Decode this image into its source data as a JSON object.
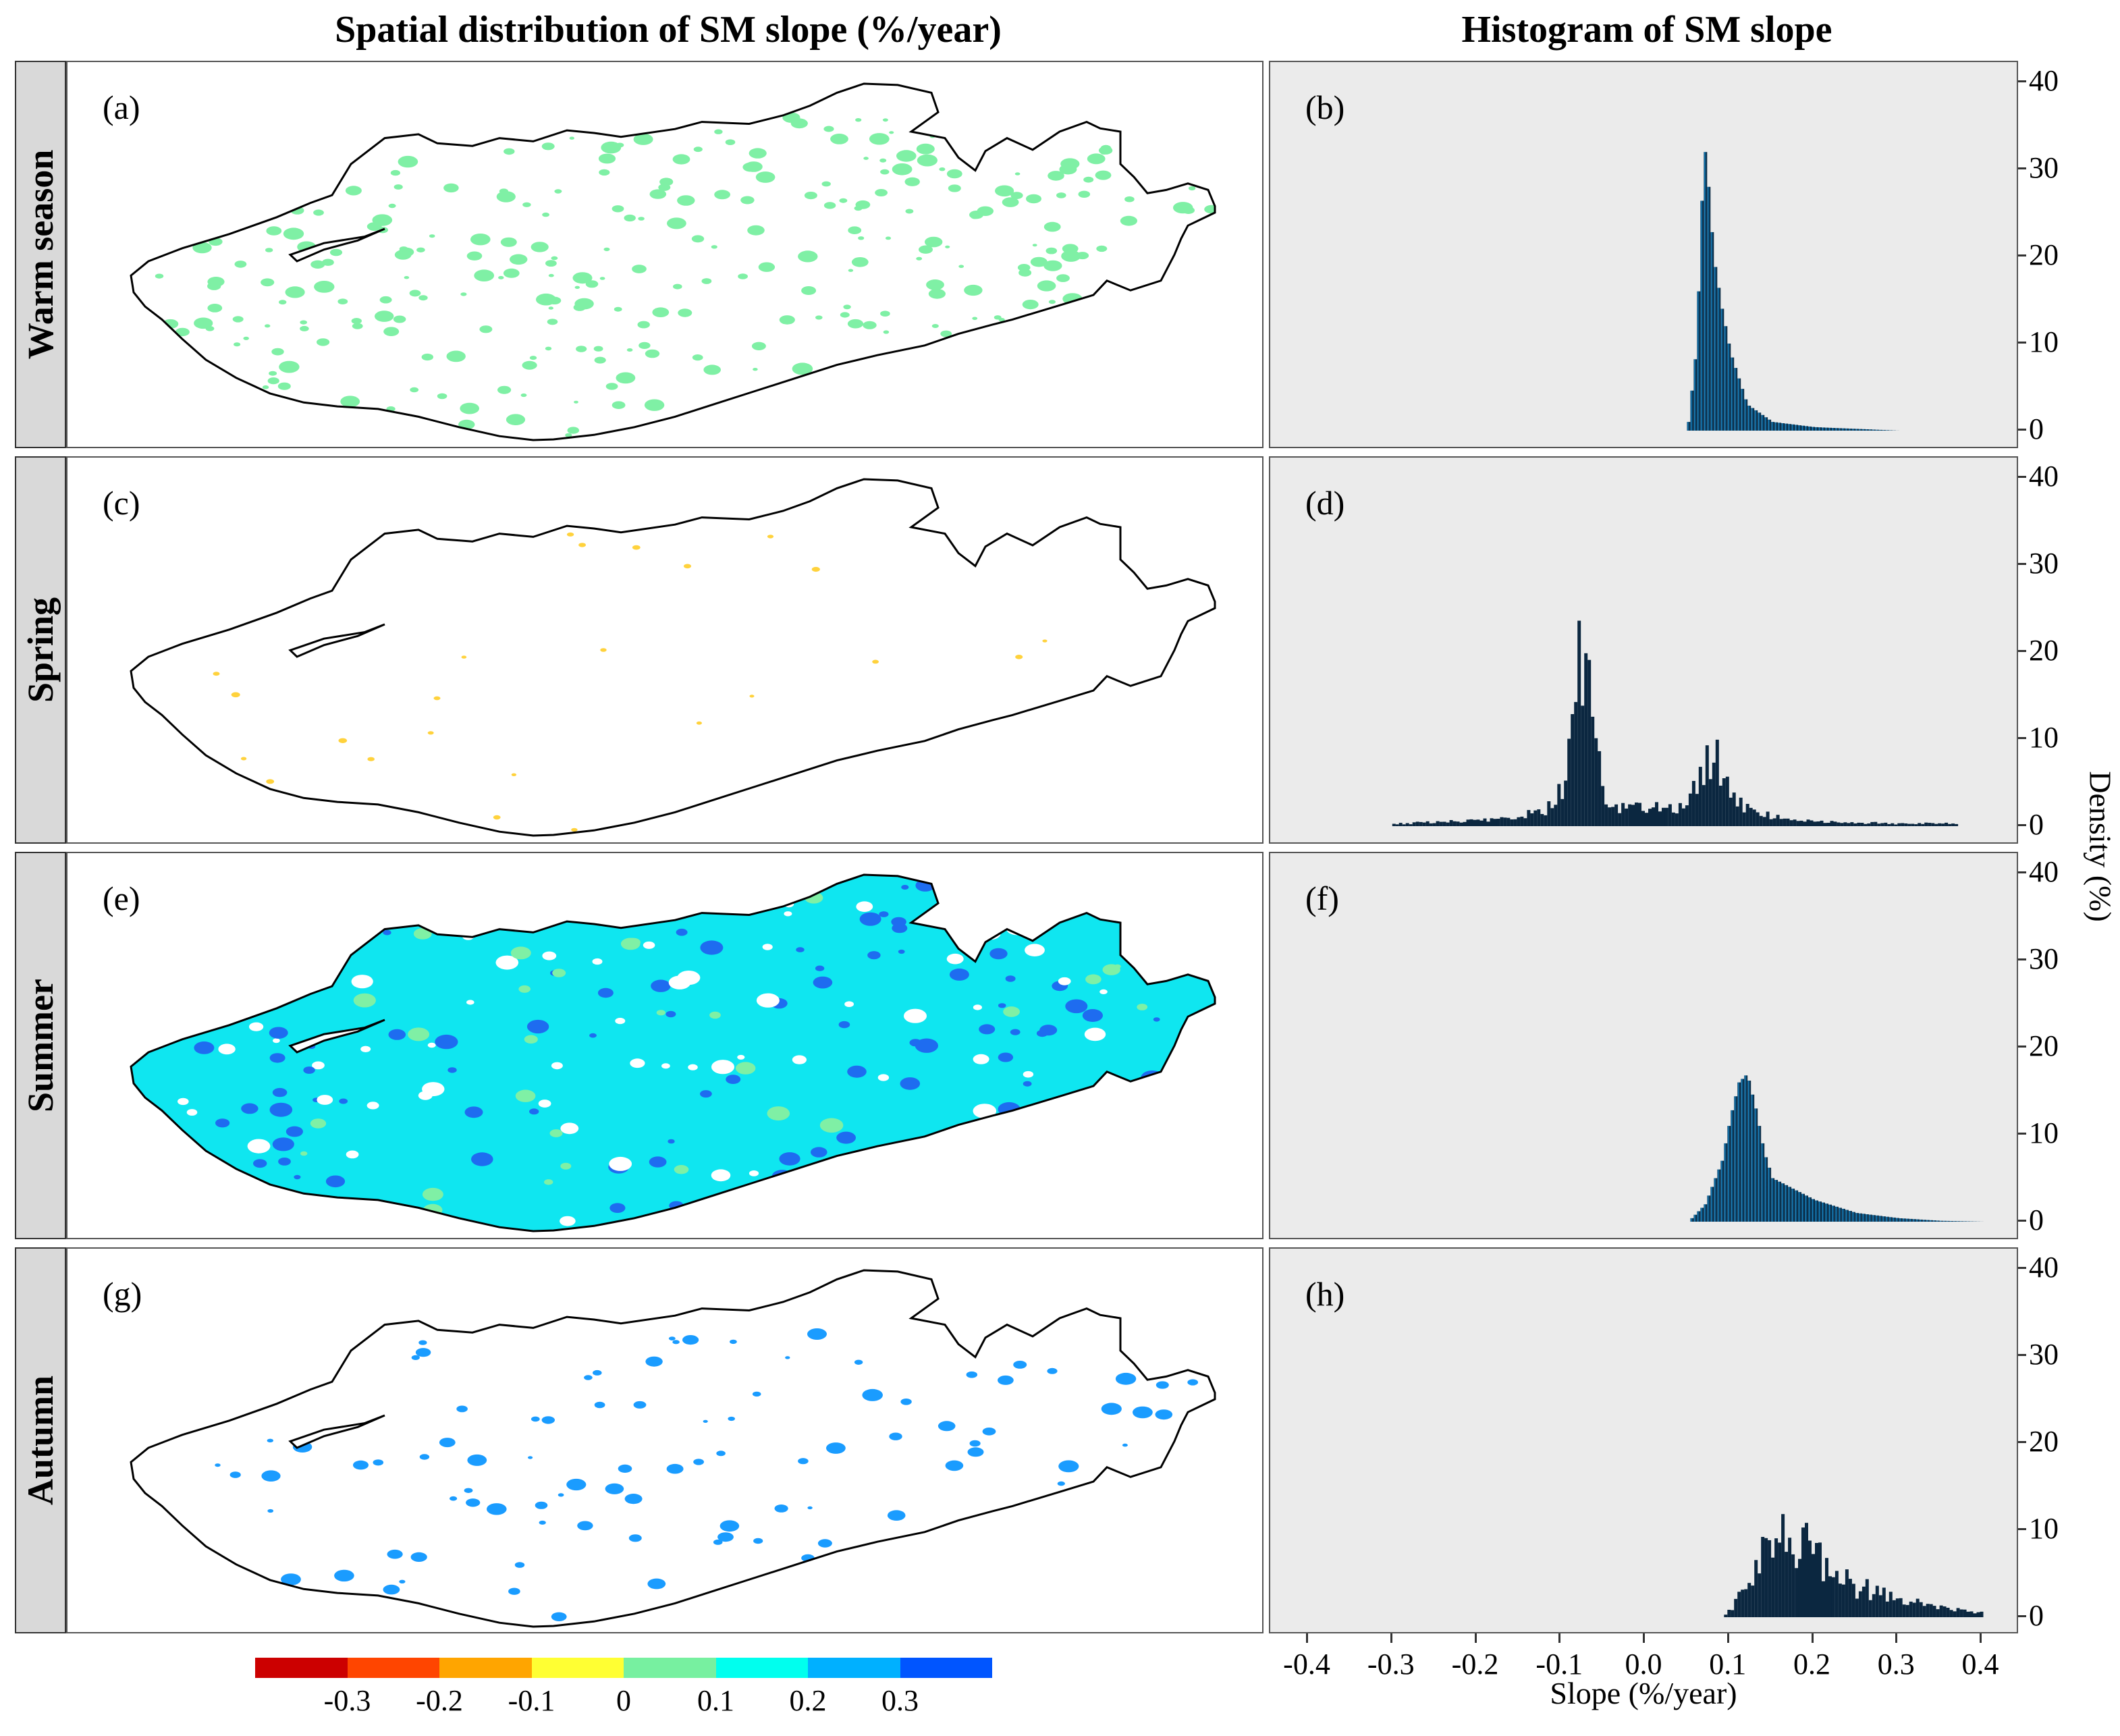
{
  "titles": {
    "left": "Spatial distribution of SM slope (%/year)",
    "right": "Histogram of SM slope"
  },
  "rows": [
    {
      "season": "Warm season",
      "map_label": "(a)",
      "hist_label": "(b)"
    },
    {
      "season": "Spring",
      "map_label": "(c)",
      "hist_label": "(d)"
    },
    {
      "season": "Summer",
      "map_label": "(e)",
      "hist_label": "(f)"
    },
    {
      "season": "Autumn",
      "map_label": "(g)",
      "hist_label": "(h)"
    }
  ],
  "colorbar": {
    "colors": [
      "#cc0000",
      "#ff4500",
      "#ffa500",
      "#ffff33",
      "#77f0a0",
      "#00ffee",
      "#00b0ff",
      "#0055ff"
    ],
    "labels": [
      "-0.3",
      "-0.2",
      "-0.1",
      "0",
      "0.1",
      "0.2",
      "0.3"
    ]
  },
  "map_colors": {
    "outline": "#000000",
    "warm_fill": "#7ff0a5",
    "summer_fill": "#0fe6f0",
    "summer_dark": "#1e6cf0",
    "autumn_fill": "#1a9cff",
    "spring_fill": "#ffd23c"
  },
  "chart_data": [
    {
      "type": "histogram",
      "panel": "(b)",
      "title": "Warm season",
      "xlabel": "Slope (%/year)",
      "ylabel": "Density (%)",
      "xlim": [
        -0.4,
        0.4
      ],
      "ylim": [
        0,
        40
      ],
      "xticks": [
        "-0.4",
        "-0.3",
        "-0.2",
        "-0.1",
        "0.0",
        "0.1",
        "0.2",
        "0.3",
        "0.4"
      ],
      "yticks": [
        "0",
        "10",
        "20",
        "30",
        "40"
      ],
      "x": [
        0.05,
        0.06,
        0.065,
        0.07,
        0.075,
        0.08,
        0.09,
        0.1,
        0.12,
        0.15,
        0.2,
        0.25,
        0.3
      ],
      "density": [
        1,
        10,
        25,
        32,
        27,
        20,
        14,
        9,
        3,
        1,
        0.4,
        0.2,
        0
      ]
    },
    {
      "type": "histogram",
      "panel": "(d)",
      "title": "Spring",
      "xlabel": "Slope (%/year)",
      "ylabel": "Density (%)",
      "xlim": [
        -0.4,
        0.4
      ],
      "ylim": [
        0,
        40
      ],
      "x": [
        -0.3,
        -0.2,
        -0.15,
        -0.12,
        -0.1,
        -0.09,
        -0.08,
        -0.07,
        -0.06,
        -0.05,
        0.05,
        0.06,
        0.07,
        0.08,
        0.09,
        0.1,
        0.12,
        0.15,
        0.2,
        0.3,
        0.37
      ],
      "density": [
        0.3,
        0.6,
        1,
        2,
        5,
        10,
        17,
        20,
        12,
        2,
        2,
        6,
        8,
        8,
        6,
        4,
        2,
        1,
        0.5,
        0.3,
        0.3
      ]
    },
    {
      "type": "histogram",
      "panel": "(f)",
      "title": "Summer",
      "xlabel": "Slope (%/year)",
      "ylabel": "Density (%)",
      "xlim": [
        -0.4,
        0.4
      ],
      "ylim": [
        0,
        40
      ],
      "x": [
        0.05,
        0.07,
        0.09,
        0.1,
        0.11,
        0.12,
        0.13,
        0.14,
        0.15,
        0.17,
        0.2,
        0.25,
        0.3,
        0.35,
        0.4
      ],
      "density": [
        0,
        2,
        7,
        12,
        16,
        17,
        13,
        8,
        5,
        4,
        2.5,
        1,
        0.4,
        0.1,
        0
      ]
    },
    {
      "type": "histogram",
      "panel": "(h)",
      "title": "Autumn",
      "xlabel": "Slope (%/year)",
      "ylabel": "Density (%)",
      "xlim": [
        -0.4,
        0.4
      ],
      "ylim": [
        0,
        40
      ],
      "x": [
        0.09,
        0.1,
        0.12,
        0.14,
        0.16,
        0.18,
        0.2,
        0.22,
        0.25,
        0.3,
        0.35,
        0.4
      ],
      "density": [
        0,
        1,
        4,
        7,
        9,
        9,
        7,
        5,
        3.5,
        2,
        1,
        0.5
      ]
    }
  ],
  "axis": {
    "ylabel": "Density (%)",
    "xlabel": "Slope (%/year)",
    "yticks": [
      "0",
      "10",
      "20",
      "30",
      "40"
    ],
    "xticks": [
      "-0.4",
      "-0.3",
      "-0.2",
      "-0.1",
      "0.0",
      "0.1",
      "0.2",
      "0.3",
      "0.4"
    ]
  }
}
